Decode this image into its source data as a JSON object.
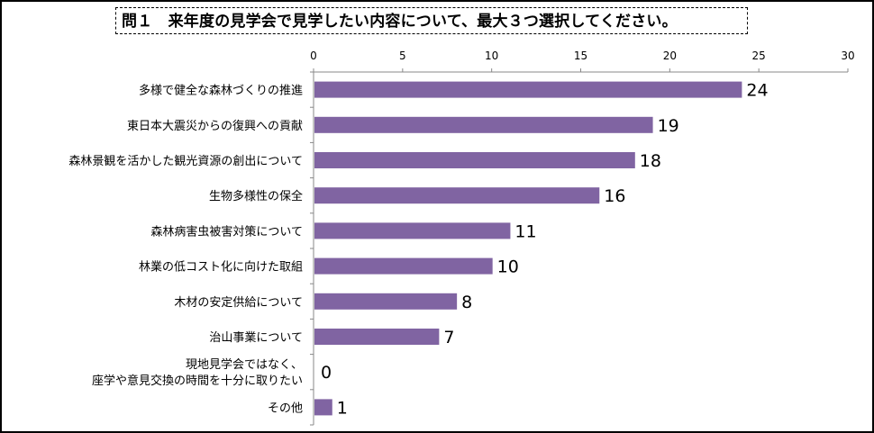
{
  "chart_data": {
    "type": "bar",
    "orientation": "horizontal",
    "title": "問１　来年度の見学会で見学したい内容について、最大３つ選択してください。",
    "categories": [
      "多様で健全な森林づくりの推進",
      "東日本大震災からの復興への貢献",
      "森林景観を活かした観光資源の創出について",
      "生物多様性の保全",
      "森林病害虫被害対策について",
      "林業の低コスト化に向けた取組",
      "木材の安定供給について",
      "治山事業について",
      "現地見学会ではなく、\n座学や意見交換の時間を十分に取りたい",
      "その他"
    ],
    "values": [
      24,
      19,
      18,
      16,
      11,
      10,
      8,
      7,
      0,
      1
    ],
    "xlim": [
      0,
      30
    ],
    "xticks": [
      0,
      5,
      10,
      15,
      20,
      25,
      30
    ],
    "xaxis_position": "top",
    "grid": false,
    "legend": "none",
    "bar_color": "#8064A2"
  }
}
